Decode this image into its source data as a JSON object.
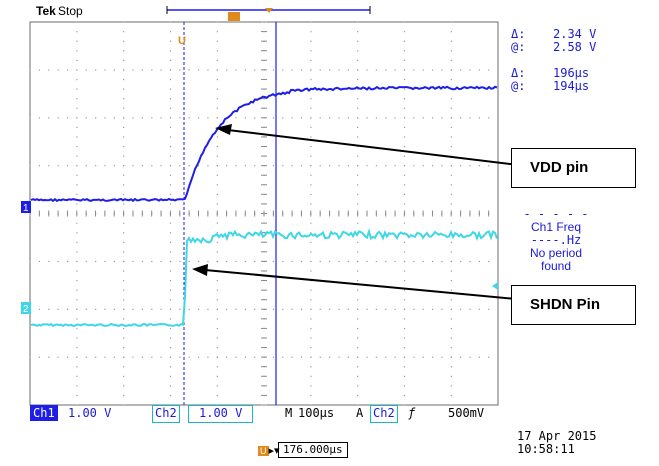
{
  "header": {
    "brand": "Tek",
    "status": "Stop"
  },
  "cursor_readouts": {
    "voltage_delta_label": "Δ:",
    "voltage_delta": "2.34 V",
    "voltage_at_label": "@:",
    "voltage_at": "2.58 V",
    "time_delta_label": "Δ:",
    "time_delta": "196µs",
    "time_at_label": "@:",
    "time_at": "194µs"
  },
  "measurement": {
    "dashes": "- - - - -",
    "title": "Ch1 Freq",
    "value": "----.Hz",
    "line1": "No period",
    "line2": "found"
  },
  "channel_markers": {
    "ch1": "1",
    "ch2": "2",
    "trigger": "U"
  },
  "callouts": {
    "vdd": "VDD pin",
    "shdn": "SHDN Pin"
  },
  "bottom_bar": {
    "ch1_label": "Ch1",
    "ch1_scale": "1.00 V",
    "ch2_label": "Ch2",
    "ch2_scale": "1.00 V",
    "timebase_label": "M",
    "timebase": "100µs",
    "trigger_mode": "A",
    "trigger_source": "Ch2",
    "trigger_slope": "ƒ",
    "trigger_level": "500mV"
  },
  "footer": {
    "trigger_position": "176.000µs",
    "date": "17 Apr 2015",
    "time": "10:58:11"
  },
  "colors": {
    "ch1": "#1e1ee6",
    "ch2": "#40d6e6",
    "grid": "#9a9a9a",
    "trigger": "#e08a1e"
  }
}
